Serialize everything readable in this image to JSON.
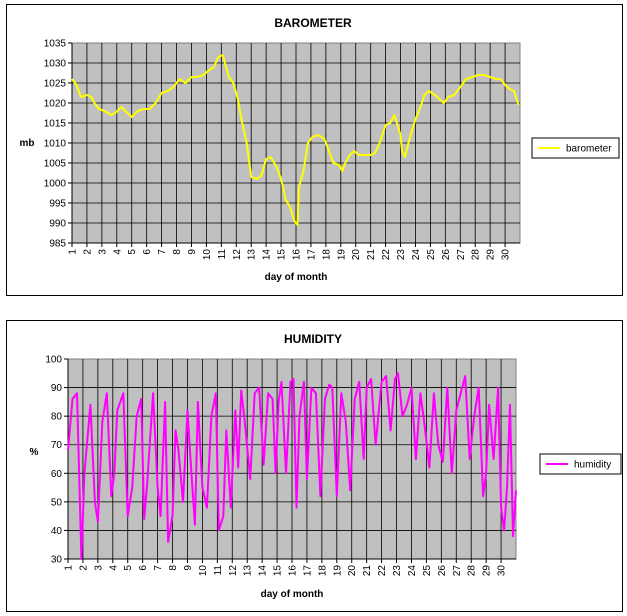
{
  "chart_data": [
    {
      "type": "line",
      "title": "BAROMETER",
      "xlabel": "day of month",
      "ylabel": "mb",
      "ylim": [
        985,
        1035
      ],
      "yticks": [
        985,
        990,
        995,
        1000,
        1005,
        1010,
        1015,
        1020,
        1025,
        1030,
        1035
      ],
      "xlim": [
        1,
        31
      ],
      "xtick_labels": [
        "1",
        "2",
        "3",
        "4",
        "5",
        "6",
        "7",
        "8",
        "9",
        "10",
        "11",
        "12",
        "13",
        "14",
        "15",
        "16",
        "17",
        "18",
        "19",
        "20",
        "21",
        "22",
        "23",
        "24",
        "25",
        "26",
        "27",
        "28",
        "29",
        "30"
      ],
      "grid": true,
      "legend_position": "right",
      "series": [
        {
          "name": "barometer",
          "color": "#ffff00",
          "x": [
            1.0,
            1.3,
            1.6,
            2.0,
            2.3,
            2.5,
            2.8,
            3.2,
            3.6,
            3.9,
            4.3,
            4.7,
            5.0,
            5.4,
            5.8,
            6.2,
            6.6,
            7.0,
            7.4,
            7.8,
            8.2,
            8.6,
            9.0,
            9.4,
            9.8,
            10.1,
            10.5,
            10.8,
            11.1,
            11.5,
            11.8,
            12.1,
            12.4,
            12.7,
            13.0,
            13.4,
            13.7,
            14.0,
            14.3,
            14.7,
            15.0,
            15.3,
            15.6,
            15.9,
            16.1,
            16.2,
            16.5,
            16.8,
            17.1,
            17.5,
            17.9,
            18.2,
            18.5,
            18.9,
            19.1,
            19.3,
            19.6,
            19.9,
            20.2,
            20.6,
            21.0,
            21.3,
            21.6,
            22.0,
            22.3,
            22.6,
            23.0,
            23.1,
            23.3,
            23.6,
            24.0,
            24.3,
            24.6,
            24.9,
            25.3,
            25.6,
            25.9,
            26.2,
            26.6,
            27.0,
            27.4,
            27.8,
            28.2,
            28.6,
            29.0,
            29.4,
            29.7,
            30.0,
            30.3,
            30.6,
            30.9
          ],
          "values": [
            1026,
            1024.5,
            1021.5,
            1022,
            1021.5,
            1020,
            1018.5,
            1018,
            1017,
            1017.5,
            1019,
            1017.5,
            1016.5,
            1018,
            1018.5,
            1018.5,
            1020,
            1022.5,
            1023,
            1024,
            1026,
            1025,
            1026.5,
            1026.5,
            1027,
            1028,
            1029,
            1031.5,
            1032,
            1026.5,
            1025,
            1021,
            1015,
            1010,
            1001.5,
            1001,
            1002,
            1006,
            1006.5,
            1004,
            1001,
            996,
            994,
            990.5,
            989.5,
            999,
            1003,
            1010,
            1011.5,
            1012,
            1011,
            1008,
            1005,
            1004.5,
            1003,
            1005,
            1007,
            1008,
            1007,
            1007,
            1007,
            1007.5,
            1010,
            1014.5,
            1015,
            1017,
            1012,
            1008,
            1006.5,
            1011,
            1016,
            1018.5,
            1022,
            1023,
            1022,
            1021,
            1020,
            1021.5,
            1022,
            1024,
            1026,
            1026.5,
            1027,
            1027,
            1026.5,
            1026,
            1026,
            1024.5,
            1023.5,
            1023,
            1019.5
          ]
        }
      ]
    },
    {
      "type": "line",
      "title": "HUMIDITY",
      "xlabel": "day of month",
      "ylabel": "%",
      "ylim": [
        30,
        100
      ],
      "yticks": [
        30,
        40,
        50,
        60,
        70,
        80,
        90,
        100
      ],
      "xlim": [
        1,
        31
      ],
      "xtick_labels": [
        "1",
        "2",
        "3",
        "4",
        "5",
        "6",
        "7",
        "8",
        "9",
        "10",
        "11",
        "12",
        "13",
        "14",
        "15",
        "16",
        "17",
        "18",
        "19",
        "20",
        "21",
        "22",
        "23",
        "24",
        "25",
        "26",
        "27",
        "28",
        "29",
        "30"
      ],
      "grid": true,
      "legend_position": "right",
      "series": [
        {
          "name": "humidity",
          "color": "#ff00ff",
          "x": [
            1.0,
            1.3,
            1.6,
            1.9,
            2.1,
            2.5,
            2.8,
            3.0,
            3.3,
            3.6,
            3.9,
            4.1,
            4.3,
            4.7,
            5.0,
            5.3,
            5.6,
            5.9,
            6.1,
            6.3,
            6.7,
            7.0,
            7.2,
            7.5,
            7.7,
            8.0,
            8.2,
            8.4,
            8.7,
            9.0,
            9.2,
            9.5,
            9.7,
            10.0,
            10.3,
            10.6,
            10.9,
            11.1,
            11.4,
            11.6,
            11.9,
            12.2,
            12.4,
            12.6,
            12.8,
            13.2,
            13.5,
            13.8,
            14.1,
            14.4,
            14.7,
            14.9,
            15.1,
            15.3,
            15.6,
            15.9,
            16.1,
            16.3,
            16.5,
            16.8,
            17.0,
            17.3,
            17.6,
            17.9,
            18.2,
            18.5,
            18.7,
            19.0,
            19.3,
            19.6,
            19.9,
            20.2,
            20.5,
            20.8,
            21.0,
            21.3,
            21.6,
            22.0,
            22.3,
            22.6,
            22.9,
            23.1,
            23.4,
            23.7,
            24.0,
            24.3,
            24.6,
            24.9,
            25.2,
            25.5,
            25.8,
            26.1,
            26.4,
            26.7,
            27.0,
            27.3,
            27.6,
            27.9,
            28.2,
            28.5,
            28.8,
            29.0,
            29.2,
            29.5,
            29.8,
            30.0,
            30.2,
            30.4,
            30.6,
            30.8,
            31.0
          ],
          "values": [
            68,
            86,
            88,
            30,
            60,
            84,
            50,
            43,
            78,
            88,
            52,
            60,
            82,
            88,
            45,
            55,
            80,
            86,
            44,
            56,
            88,
            55,
            45,
            85,
            36,
            45,
            75,
            68,
            50,
            82,
            65,
            42,
            85,
            55,
            48,
            80,
            88,
            40,
            45,
            75,
            48,
            82,
            62,
            89,
            80,
            58,
            88,
            90,
            63,
            88,
            86,
            60,
            85,
            92,
            60,
            92,
            93,
            48,
            80,
            92,
            58,
            90,
            88,
            52,
            86,
            91,
            90,
            52,
            88,
            78,
            54,
            86,
            92,
            65,
            90,
            93,
            70,
            92,
            94,
            75,
            93,
            95,
            80,
            84,
            90,
            65,
            88,
            76,
            62,
            88,
            70,
            64,
            90,
            60,
            82,
            88,
            94,
            65,
            80,
            90,
            52,
            60,
            84,
            65,
            90,
            48,
            40,
            55,
            84,
            38,
            54
          ]
        }
      ]
    }
  ]
}
